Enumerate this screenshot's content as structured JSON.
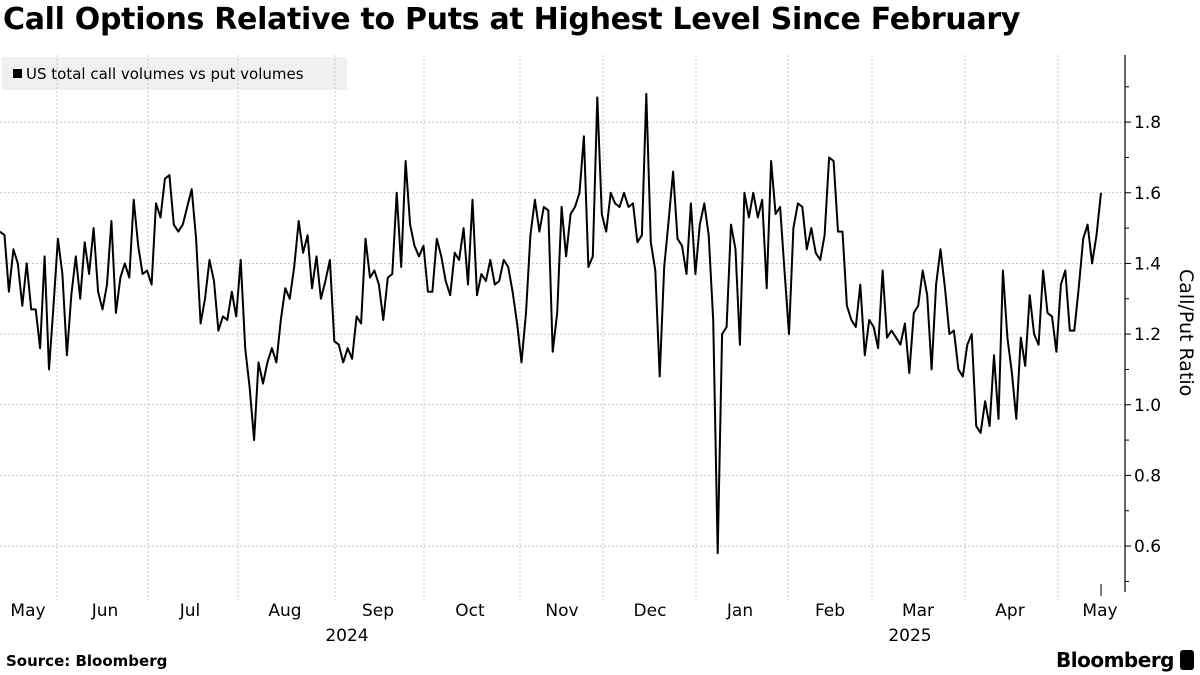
{
  "chart_data": {
    "type": "line",
    "title": "Call Options Relative to Puts at Highest Level Since February",
    "legend": [
      "US total call volumes vs put volumes"
    ],
    "legend_position": "top-left",
    "ylabel": "Call/Put Ratio",
    "xlabel": "",
    "ylim": [
      0.47,
      1.99
    ],
    "yticks": [
      "0.6",
      "0.8",
      "1.0",
      "1.2",
      "1.4",
      "1.6",
      "1.8"
    ],
    "xticks": [
      "May",
      "Jun",
      "Jul",
      "Aug",
      "Sep",
      "Oct",
      "Nov",
      "Dec",
      "Jan",
      "Feb",
      "Mar",
      "Apr",
      "May"
    ],
    "year_labels": [
      "2024",
      "2025"
    ],
    "grid": true,
    "series": [
      {
        "name": "US total call volumes vs put volumes",
        "color": "#000000",
        "values": [
          1.49,
          1.48,
          1.32,
          1.44,
          1.4,
          1.28,
          1.4,
          1.27,
          1.27,
          1.16,
          1.42,
          1.1,
          1.28,
          1.47,
          1.37,
          1.14,
          1.31,
          1.42,
          1.3,
          1.46,
          1.37,
          1.5,
          1.32,
          1.27,
          1.34,
          1.52,
          1.26,
          1.36,
          1.4,
          1.36,
          1.58,
          1.45,
          1.37,
          1.38,
          1.34,
          1.57,
          1.53,
          1.64,
          1.65,
          1.51,
          1.49,
          1.51,
          1.56,
          1.61,
          1.47,
          1.23,
          1.3,
          1.41,
          1.35,
          1.21,
          1.25,
          1.24,
          1.32,
          1.25,
          1.41,
          1.16,
          1.05,
          0.9,
          1.12,
          1.06,
          1.12,
          1.16,
          1.12,
          1.24,
          1.33,
          1.3,
          1.39,
          1.52,
          1.43,
          1.48,
          1.33,
          1.42,
          1.3,
          1.35,
          1.41,
          1.18,
          1.17,
          1.12,
          1.16,
          1.13,
          1.25,
          1.23,
          1.47,
          1.36,
          1.38,
          1.34,
          1.24,
          1.36,
          1.37,
          1.6,
          1.39,
          1.69,
          1.51,
          1.45,
          1.42,
          1.45,
          1.32,
          1.32,
          1.47,
          1.42,
          1.35,
          1.31,
          1.43,
          1.41,
          1.5,
          1.34,
          1.58,
          1.31,
          1.37,
          1.35,
          1.41,
          1.34,
          1.35,
          1.41,
          1.39,
          1.32,
          1.23,
          1.12,
          1.26,
          1.48,
          1.58,
          1.49,
          1.56,
          1.55,
          1.15,
          1.26,
          1.56,
          1.42,
          1.54,
          1.56,
          1.6,
          1.76,
          1.39,
          1.42,
          1.87,
          1.54,
          1.49,
          1.6,
          1.57,
          1.56,
          1.6,
          1.56,
          1.57,
          1.46,
          1.48,
          1.88,
          1.46,
          1.38,
          1.08,
          1.39,
          1.52,
          1.66,
          1.47,
          1.45,
          1.37,
          1.57,
          1.37,
          1.51,
          1.57,
          1.48,
          1.24,
          0.58,
          1.2,
          1.22,
          1.51,
          1.44,
          1.17,
          1.6,
          1.53,
          1.6,
          1.53,
          1.58,
          1.33,
          1.69,
          1.54,
          1.56,
          1.38,
          1.2,
          1.5,
          1.57,
          1.56,
          1.44,
          1.5,
          1.43,
          1.41,
          1.48,
          1.7,
          1.69,
          1.49,
          1.49,
          1.28,
          1.24,
          1.22,
          1.34,
          1.14,
          1.24,
          1.22,
          1.16,
          1.38,
          1.19,
          1.21,
          1.19,
          1.17,
          1.23,
          1.09,
          1.26,
          1.28,
          1.38,
          1.31,
          1.1,
          1.34,
          1.44,
          1.33,
          1.2,
          1.21,
          1.1,
          1.08,
          1.17,
          1.2,
          0.94,
          0.92,
          1.01,
          0.94,
          1.14,
          0.96,
          1.38,
          1.19,
          1.09,
          0.96,
          1.19,
          1.11,
          1.31,
          1.2,
          1.17,
          1.38,
          1.26,
          1.25,
          1.15,
          1.34,
          1.38,
          1.21,
          1.21,
          1.33,
          1.47,
          1.51,
          1.4,
          1.48,
          1.6
        ]
      }
    ]
  },
  "footer": {
    "source": "Source: Bloomberg",
    "brand": "Bloomberg"
  }
}
